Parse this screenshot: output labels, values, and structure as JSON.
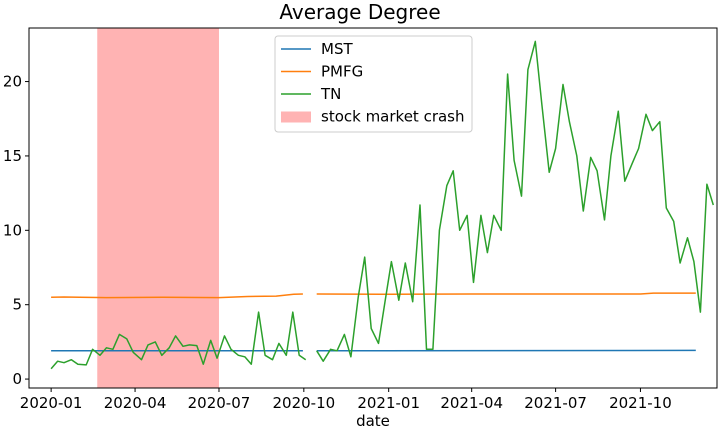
{
  "chart_data": {
    "type": "line",
    "title": "Average Degree",
    "xlabel": "date",
    "ylabel": "",
    "xlim": [
      "2019-12-08",
      "2021-12-23"
    ],
    "ylim": [
      -0.6,
      23.6
    ],
    "x_ticks": [
      "2020-01",
      "2020-04",
      "2020-07",
      "2020-10",
      "2021-01",
      "2021-04",
      "2021-07",
      "2021-10"
    ],
    "x_tick_dates": [
      "2020-01-01",
      "2020-04-01",
      "2020-07-01",
      "2020-10-01",
      "2021-01-01",
      "2021-04-01",
      "2021-07-01",
      "2021-10-01"
    ],
    "y_ticks": [
      0,
      5,
      10,
      15,
      20
    ],
    "legend": {
      "position": "top-center"
    },
    "shaded_regions": [
      {
        "name": "stock market crash",
        "start": "2020-02-20",
        "end": "2020-07-01",
        "color": "#ffb3b3"
      }
    ],
    "series": [
      {
        "name": "MST",
        "color": "#1f77b4",
        "segments": [
          {
            "points": [
              [
                "2020-01-01",
                1.9
              ],
              [
                "2020-09-30",
                1.9
              ]
            ]
          },
          {
            "points": [
              [
                "2020-10-15",
                1.9
              ],
              [
                "2021-11-30",
                1.93
              ]
            ]
          }
        ]
      },
      {
        "name": "PMFG",
        "color": "#ff7f0e",
        "segments": [
          {
            "points": [
              [
                "2020-01-01",
                5.5
              ],
              [
                "2020-01-15",
                5.52
              ],
              [
                "2020-02-01",
                5.5
              ],
              [
                "2020-03-01",
                5.48
              ],
              [
                "2020-05-01",
                5.5
              ],
              [
                "2020-07-01",
                5.48
              ],
              [
                "2020-08-01",
                5.55
              ],
              [
                "2020-09-01",
                5.58
              ],
              [
                "2020-09-20",
                5.7
              ],
              [
                "2020-09-30",
                5.72
              ]
            ]
          },
          {
            "points": [
              [
                "2020-10-15",
                5.72
              ],
              [
                "2021-01-01",
                5.7
              ],
              [
                "2021-04-01",
                5.72
              ],
              [
                "2021-07-01",
                5.72
              ],
              [
                "2021-10-01",
                5.72
              ],
              [
                "2021-10-15",
                5.78
              ],
              [
                "2021-11-30",
                5.78
              ]
            ]
          }
        ]
      },
      {
        "name": "TN",
        "color": "#2ca02c",
        "segments": [
          {
            "points": [
              [
                "2020-01-01",
                0.7
              ],
              [
                "2020-01-08",
                1.2
              ],
              [
                "2020-01-15",
                1.1
              ],
              [
                "2020-01-23",
                1.3
              ],
              [
                "2020-01-30",
                1.0
              ],
              [
                "2020-02-08",
                0.95
              ],
              [
                "2020-02-15",
                2.0
              ],
              [
                "2020-02-23",
                1.6
              ],
              [
                "2020-03-01",
                2.1
              ],
              [
                "2020-03-08",
                2.0
              ],
              [
                "2020-03-15",
                3.0
              ],
              [
                "2020-03-23",
                2.7
              ],
              [
                "2020-03-30",
                1.8
              ],
              [
                "2020-04-08",
                1.3
              ],
              [
                "2020-04-15",
                2.3
              ],
              [
                "2020-04-23",
                2.5
              ],
              [
                "2020-04-30",
                1.6
              ],
              [
                "2020-05-08",
                2.1
              ],
              [
                "2020-05-15",
                2.9
              ],
              [
                "2020-05-23",
                2.2
              ],
              [
                "2020-05-30",
                2.3
              ],
              [
                "2020-06-07",
                2.25
              ],
              [
                "2020-06-14",
                1.0
              ],
              [
                "2020-06-22",
                2.6
              ],
              [
                "2020-06-29",
                1.4
              ],
              [
                "2020-07-07",
                2.9
              ],
              [
                "2020-07-14",
                2.0
              ],
              [
                "2020-07-22",
                1.6
              ],
              [
                "2020-07-29",
                1.5
              ],
              [
                "2020-08-05",
                1.0
              ],
              [
                "2020-08-13",
                4.5
              ],
              [
                "2020-08-20",
                1.6
              ],
              [
                "2020-08-28",
                1.3
              ],
              [
                "2020-09-04",
                2.4
              ],
              [
                "2020-09-12",
                1.6
              ],
              [
                "2020-09-19",
                4.5
              ],
              [
                "2020-09-26",
                1.6
              ],
              [
                "2020-10-03",
                1.3
              ]
            ]
          },
          {
            "points": [
              [
                "2020-10-15",
                1.9
              ],
              [
                "2020-10-22",
                1.2
              ],
              [
                "2020-10-30",
                2.0
              ],
              [
                "2020-11-06",
                1.9
              ],
              [
                "2020-11-14",
                3.0
              ],
              [
                "2020-11-21",
                1.5
              ],
              [
                "2020-11-29",
                5.5
              ],
              [
                "2020-12-06",
                8.2
              ],
              [
                "2020-12-13",
                3.4
              ],
              [
                "2020-12-21",
                2.4
              ],
              [
                "2020-12-28",
                5.2
              ],
              [
                "2021-01-04",
                7.9
              ],
              [
                "2021-01-12",
                5.3
              ],
              [
                "2021-01-19",
                7.8
              ],
              [
                "2021-01-27",
                5.2
              ],
              [
                "2021-02-04",
                11.7
              ],
              [
                "2021-02-11",
                2.0
              ],
              [
                "2021-02-18",
                2.0
              ],
              [
                "2021-02-25",
                10.0
              ],
              [
                "2021-03-05",
                13.0
              ],
              [
                "2021-03-12",
                14.0
              ],
              [
                "2021-03-19",
                10.0
              ],
              [
                "2021-03-27",
                11.0
              ],
              [
                "2021-04-03",
                6.5
              ],
              [
                "2021-04-11",
                11.0
              ],
              [
                "2021-04-18",
                8.5
              ],
              [
                "2021-04-25",
                11.0
              ],
              [
                "2021-05-03",
                10.0
              ],
              [
                "2021-05-10",
                20.5
              ],
              [
                "2021-05-17",
                14.7
              ],
              [
                "2021-05-25",
                12.3
              ],
              [
                "2021-06-01",
                20.8
              ],
              [
                "2021-06-09",
                22.7
              ],
              [
                "2021-06-16",
                18.5
              ],
              [
                "2021-06-24",
                13.9
              ],
              [
                "2021-07-01",
                15.5
              ],
              [
                "2021-07-09",
                19.8
              ],
              [
                "2021-07-16",
                17.3
              ],
              [
                "2021-07-24",
                15.0
              ],
              [
                "2021-07-31",
                11.3
              ],
              [
                "2021-08-08",
                14.9
              ],
              [
                "2021-08-15",
                14.0
              ],
              [
                "2021-08-23",
                10.7
              ],
              [
                "2021-08-30",
                15.0
              ],
              [
                "2021-09-07",
                18.0
              ],
              [
                "2021-09-14",
                13.3
              ],
              [
                "2021-09-22",
                14.5
              ],
              [
                "2021-09-29",
                15.5
              ],
              [
                "2021-10-07",
                17.8
              ],
              [
                "2021-10-14",
                16.7
              ],
              [
                "2021-10-22",
                17.3
              ],
              [
                "2021-10-29",
                11.5
              ],
              [
                "2021-11-06",
                10.6
              ],
              [
                "2021-11-13",
                7.8
              ],
              [
                "2021-11-21",
                9.5
              ],
              [
                "2021-11-28",
                7.9
              ],
              [
                "2021-12-05",
                4.5
              ],
              [
                "2021-12-12",
                13.1
              ],
              [
                "2021-12-19",
                11.7
              ]
            ]
          }
        ]
      }
    ]
  }
}
